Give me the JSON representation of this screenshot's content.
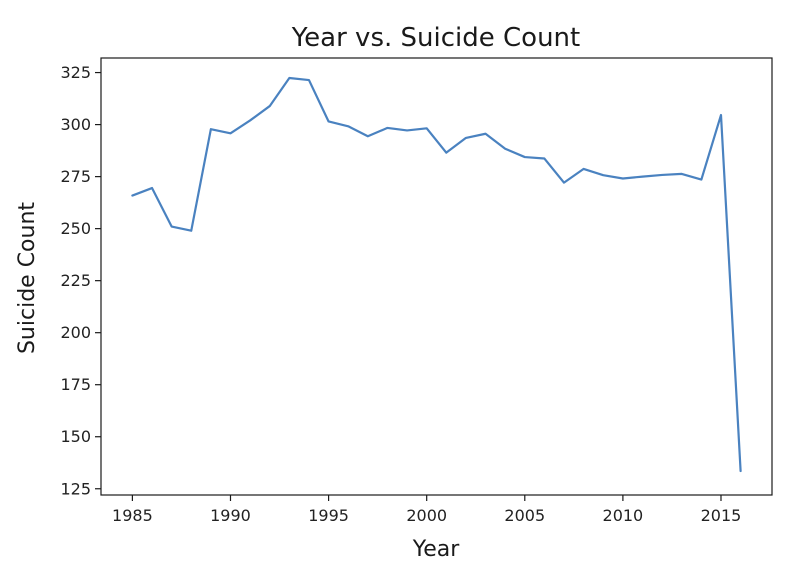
{
  "chart_data": {
    "type": "line",
    "title": "Year vs. Suicide Count",
    "xlabel": "Year",
    "ylabel": "Suicide Count",
    "xlim": [
      1983.4,
      2017.6
    ],
    "ylim": [
      122,
      332
    ],
    "xticks": [
      1985,
      1990,
      1995,
      2000,
      2005,
      2010,
      2015
    ],
    "yticks": [
      125,
      150,
      175,
      200,
      225,
      250,
      275,
      300,
      325
    ],
    "grid": false,
    "line_color": "#4a82c0",
    "x": [
      1985,
      1986,
      1987,
      1988,
      1989,
      1990,
      1991,
      1992,
      1993,
      1994,
      1995,
      1996,
      1997,
      1998,
      1999,
      2000,
      2001,
      2002,
      2003,
      2004,
      2005,
      2006,
      2007,
      2008,
      2009,
      2010,
      2011,
      2012,
      2013,
      2014,
      2015,
      2016
    ],
    "series": [
      {
        "values": [
          265.9,
          269.5,
          251.0,
          249.0,
          297.8,
          295.8,
          302.0,
          308.9,
          322.4,
          321.4,
          301.5,
          299.2,
          294.4,
          298.4,
          297.2,
          298.2,
          286.5,
          293.6,
          295.6,
          288.4,
          284.4,
          283.7,
          272.1,
          278.7,
          275.7,
          274.1,
          275.0,
          275.8,
          276.3,
          273.6,
          304.6,
          133.5
        ]
      }
    ]
  }
}
